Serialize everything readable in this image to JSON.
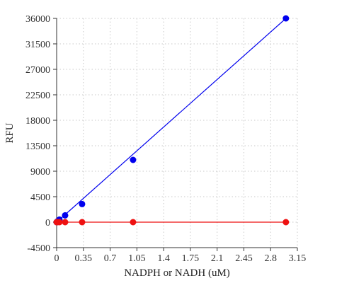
{
  "chart_data": {
    "type": "scatter",
    "title": "",
    "xlabel": "NADPH or NADH (uM)",
    "ylabel": "RFU",
    "xlim": [
      0,
      3.15
    ],
    "ylim": [
      -4500,
      36000
    ],
    "xticks": [
      0,
      0.35,
      0.7,
      1.05,
      1.4,
      1.75,
      2.1,
      2.45,
      2.8,
      3.15
    ],
    "xtick_labels": [
      "0",
      "0.35",
      "0.7",
      "1.05",
      "1.4",
      "1.75",
      "2.1",
      "2.45",
      "2.8",
      "3.15"
    ],
    "yticks": [
      -4500,
      0,
      4500,
      9000,
      13500,
      18000,
      22500,
      27000,
      31500,
      36000
    ],
    "ytick_labels": [
      "-4500",
      "0",
      "4500",
      "9000",
      "13500",
      "18000",
      "22500",
      "27000",
      "31500",
      "36000"
    ],
    "grid": true,
    "series": [
      {
        "color": "#0000ee",
        "x": [
          0,
          0.012,
          0.037,
          0.111,
          0.333,
          1.0,
          3.0
        ],
        "y": [
          0,
          150,
          450,
          1200,
          3200,
          11000,
          36000
        ],
        "fit": [
          [
            0,
            0
          ],
          [
            3.0,
            36000
          ]
        ]
      },
      {
        "color": "#ee1111",
        "x": [
          0,
          0.012,
          0.037,
          0.111,
          0.333,
          1.0,
          3.0
        ],
        "y": [
          0,
          0,
          0,
          0,
          0,
          0,
          0
        ],
        "fit": [
          [
            0,
            0
          ],
          [
            3.0,
            0
          ]
        ]
      }
    ]
  }
}
